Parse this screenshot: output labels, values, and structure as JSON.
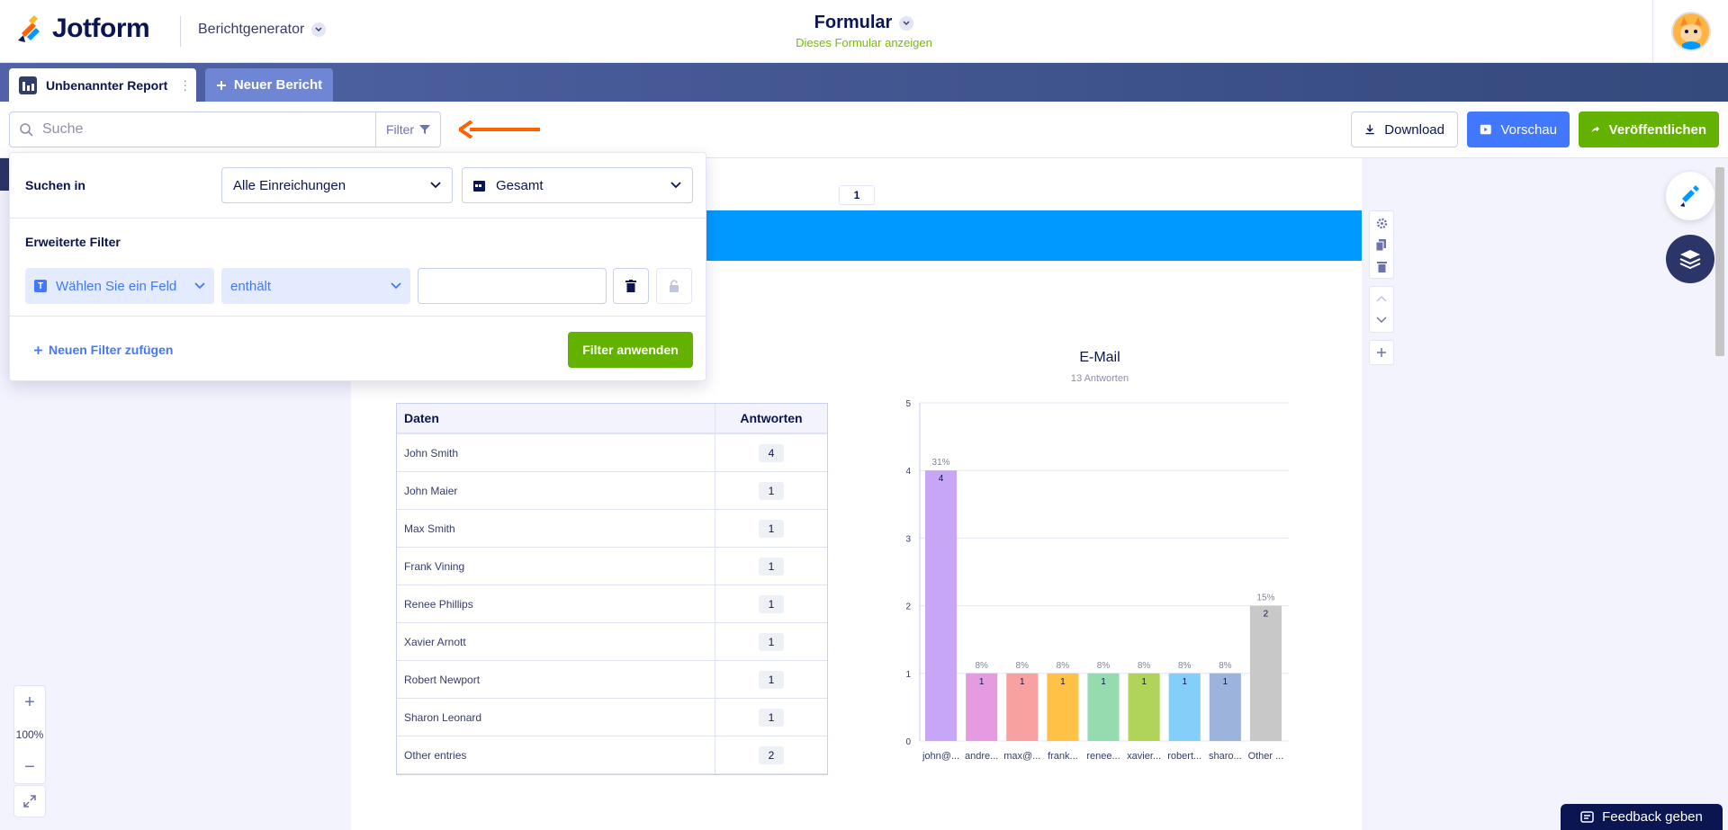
{
  "header": {
    "brand": "Jotform",
    "app_section": "Berichtgenerator",
    "form_name": "Formular",
    "form_link": "Dieses Formular anzeigen"
  },
  "tabs": {
    "active_label": "Unbenannter Report",
    "new_label": "Neuer Bericht"
  },
  "toolbar": {
    "search_placeholder": "Suche",
    "filter_label": "Filter",
    "download_label": "Download",
    "preview_label": "Vorschau",
    "publish_label": "Veröffentlichen"
  },
  "filter_panel": {
    "search_in_label": "Suchen in",
    "submissions_select": "Alle Einreichungen",
    "period_select": "Gesamt",
    "advanced_label": "Erweiterte Filter",
    "field_select": "Wählen Sie ein Feld",
    "operator_select": "enthält",
    "value": "",
    "add_filter_label": "Neuen Filter zufügen",
    "apply_label": "Filter anwenden"
  },
  "canvas": {
    "page_number": "1",
    "zoom_level": "100%"
  },
  "table": {
    "headers": [
      "Daten",
      "Antworten"
    ],
    "rows": [
      {
        "name": "John Smith",
        "count": "4"
      },
      {
        "name": "John Maier",
        "count": "1"
      },
      {
        "name": "Max Smith",
        "count": "1"
      },
      {
        "name": "Frank Vining",
        "count": "1"
      },
      {
        "name": "Renee Phillips",
        "count": "1"
      },
      {
        "name": "Xavier Arnott",
        "count": "1"
      },
      {
        "name": "Robert Newport",
        "count": "1"
      },
      {
        "name": "Sharon Leonard",
        "count": "1"
      },
      {
        "name": "Other entries",
        "count": "2"
      }
    ]
  },
  "chart_data": {
    "type": "bar",
    "title": "E-Mail",
    "subtitle": "13 Antworten",
    "categories": [
      "john@...",
      "andre...",
      "max@...",
      "frank...",
      "renee...",
      "xavier...",
      "robert...",
      "sharo...",
      "Other ..."
    ],
    "values": [
      4,
      1,
      1,
      1,
      1,
      1,
      1,
      1,
      2
    ],
    "percent_labels": [
      "31%",
      "8%",
      "8%",
      "8%",
      "8%",
      "8%",
      "8%",
      "8%",
      "15%"
    ],
    "colors": [
      "#c7a6f5",
      "#e59be0",
      "#f7a1a1",
      "#ffc247",
      "#95dbb0",
      "#b0d45a",
      "#84cffa",
      "#9cb3dc",
      "#c8c8c8"
    ],
    "ylim": [
      0,
      5
    ],
    "yticks": [
      0,
      1,
      2,
      3,
      4,
      5
    ],
    "grid": true
  },
  "feedback": {
    "label": "Feedback geben"
  },
  "colors": {
    "brand_navy": "#0a1551",
    "accent_blue": "#4277ff",
    "publish_green": "#64b200",
    "header_band": "#0099ff",
    "arrow_orange": "#ff6100"
  }
}
